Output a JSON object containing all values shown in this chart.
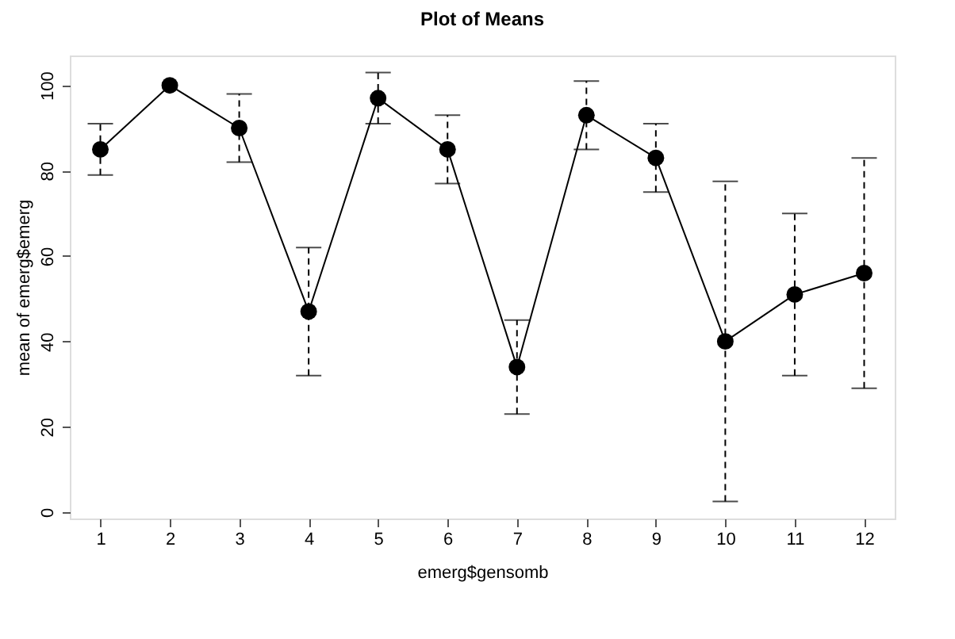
{
  "chart_data": {
    "type": "line",
    "title": "Plot of Means",
    "xlabel": "emerg$gensomb",
    "ylabel": "mean of emerg$emerg",
    "x": [
      1,
      2,
      3,
      4,
      5,
      6,
      7,
      8,
      9,
      10,
      11,
      12
    ],
    "series": [
      {
        "color": "#000000",
        "values": [
          85,
          100,
          90,
          47,
          97,
          85,
          34,
          93,
          83,
          40,
          51,
          56
        ],
        "errors": [
          [
            79,
            91
          ],
          null,
          [
            82,
            98
          ],
          [
            32,
            62
          ],
          [
            91,
            103
          ],
          [
            77,
            93
          ],
          [
            23,
            45
          ],
          [
            85,
            101
          ],
          [
            75,
            91
          ],
          [
            2.5,
            77.5
          ],
          [
            32,
            70
          ],
          [
            29,
            83
          ]
        ]
      }
    ],
    "xlim": [
      0.56,
      12.44
    ],
    "xticks": [
      1,
      2,
      3,
      4,
      5,
      6,
      7,
      8,
      9,
      10,
      11,
      12
    ],
    "ylim": [
      -1.5,
      107
    ],
    "yticks": [
      0,
      20,
      40,
      60,
      80,
      100
    ],
    "grid": false,
    "marker": "circle",
    "line_style": "solid"
  }
}
